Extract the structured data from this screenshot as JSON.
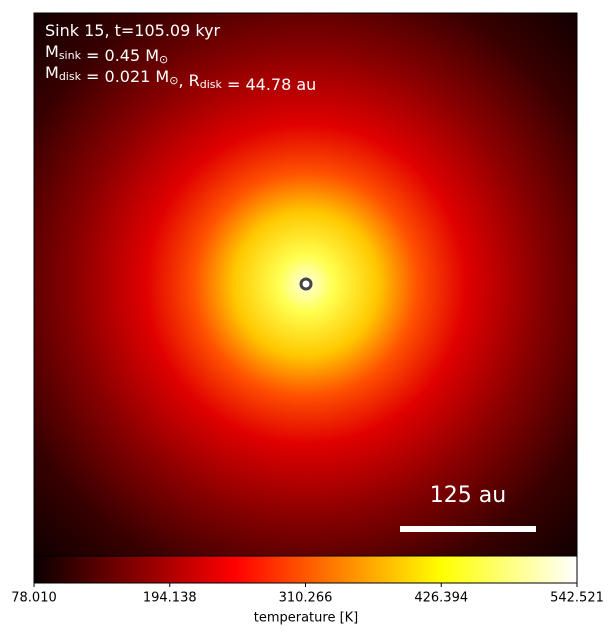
{
  "chart_data": {
    "type": "heatmap",
    "annotation_lines": [
      [
        {
          "text": "Sink 15, t=105.09 kyr"
        }
      ],
      [
        {
          "text": "M"
        },
        {
          "sub": "sink"
        },
        {
          "text": " = 0.45 M"
        },
        {
          "sub": "⊙"
        }
      ],
      [
        {
          "text": "M"
        },
        {
          "sub": "disk"
        },
        {
          "text": " = 0.021 M"
        },
        {
          "sub": "⊙"
        },
        {
          "text": ", R"
        },
        {
          "sub": "disk"
        },
        {
          "text": " = 44.78 au"
        }
      ]
    ],
    "scale_bar_label": "125 au",
    "colorbar": {
      "label": "temperature [K]",
      "colormap": "hot",
      "lim": [
        78.01,
        542.521
      ],
      "ticks": [
        {
          "value": 78.01,
          "label": "78.010"
        },
        194.138,
        310.266,
        426.394,
        542.521
      ]
    }
  }
}
